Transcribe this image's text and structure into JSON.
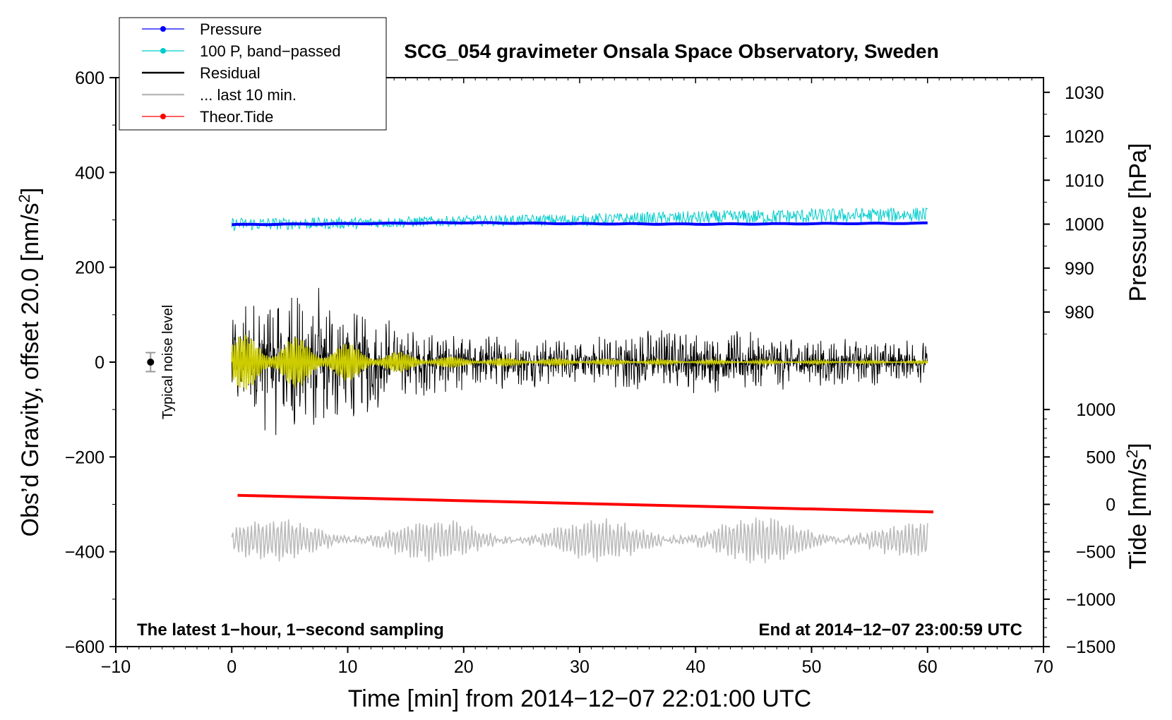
{
  "chart_data": {
    "type": "line",
    "title": "SCG_054 gravimeter Onsala Space Observatory, Sweden",
    "xlabel": "Time [min] from 2014−12−07 22:01:00 UTC",
    "ylabel_left": "Obs’d Gravity, offset 20.0 [nm/s",
    "ylabel_left_sup": "2",
    "ylabel_left_tail": "]",
    "ylabel_right_pressure": "Pressure [hPa]",
    "ylabel_right_tide": "Tide [nm/s",
    "ylabel_right_tide_sup": "2",
    "ylabel_right_tide_tail": "]",
    "xlim": [
      -10,
      70
    ],
    "ylim": [
      -600,
      600
    ],
    "x_ticks": [
      {
        "v": -10,
        "label": "−10"
      },
      {
        "v": 0,
        "label": "0"
      },
      {
        "v": 10,
        "label": "10"
      },
      {
        "v": 20,
        "label": "20"
      },
      {
        "v": 30,
        "label": "30"
      },
      {
        "v": 40,
        "label": "40"
      },
      {
        "v": 50,
        "label": "50"
      },
      {
        "v": 60,
        "label": "60"
      },
      {
        "v": 70,
        "label": "70"
      }
    ],
    "y_ticks": [
      {
        "v": 600,
        "label": "600"
      },
      {
        "v": 400,
        "label": "400"
      },
      {
        "v": 200,
        "label": "200"
      },
      {
        "v": 0,
        "label": "0"
      },
      {
        "v": -200,
        "label": "−200"
      },
      {
        "v": -400,
        "label": "−400"
      },
      {
        "v": -600,
        "label": "−600"
      }
    ],
    "pressure_axis": {
      "gravity_at_1000hPa": 291,
      "gravity_per_hPa": 9.27,
      "ticks": [
        {
          "v": 1030,
          "label": "1030"
        },
        {
          "v": 1020,
          "label": "1020"
        },
        {
          "v": 1010,
          "label": "1010"
        },
        {
          "v": 1000,
          "label": "1000"
        },
        {
          "v": 990,
          "label": "990"
        },
        {
          "v": 980,
          "label": "980"
        }
      ]
    },
    "tide_axis": {
      "gravity_at_0": -300,
      "gravity_per_unit": 0.2,
      "ticks": [
        {
          "v": 1000,
          "label": "1000"
        },
        {
          "v": 500,
          "label": "500"
        },
        {
          "v": 0,
          "label": "0"
        },
        {
          "v": -500,
          "label": "−500"
        },
        {
          "v": -1000,
          "label": "−1000"
        },
        {
          "v": -1500,
          "label": "−1500"
        }
      ]
    },
    "series": [
      {
        "name": "Pressure",
        "color": "#0000ff",
        "x": [
          0,
          10,
          20,
          30,
          40,
          50,
          60
        ],
        "values": [
          290,
          292,
          294,
          292,
          291,
          292,
          293
        ]
      },
      {
        "name": "100 P, band−passed",
        "color": "#00cccc",
        "x": [
          0,
          10,
          20,
          30,
          40,
          50,
          60
        ],
        "values": [
          291,
          293,
          298,
          300,
          304,
          308,
          312
        ],
        "amplitude": [
          14,
          12,
          11,
          13,
          15,
          16,
          15
        ]
      },
      {
        "name": "Residual",
        "color": "#000000",
        "x": [
          0,
          5,
          10,
          15,
          20,
          30,
          36,
          40,
          45,
          50,
          60
        ],
        "values": [
          0,
          0,
          0,
          0,
          0,
          0,
          0,
          0,
          0,
          0,
          0
        ],
        "amplitude": [
          120,
          180,
          140,
          80,
          60,
          50,
          75,
          70,
          65,
          55,
          45
        ]
      },
      {
        "name": "... last 10 min.",
        "color": "#bbbbbb",
        "x": [
          0,
          10,
          20,
          30,
          40,
          50,
          60
        ],
        "values": [
          -375,
          -375,
          -375,
          -375,
          -375,
          -375,
          -375
        ],
        "amplitude": [
          40,
          45,
          40,
          42,
          45,
          48,
          35
        ]
      },
      {
        "name": "Theor.Tide",
        "color": "#ff0000",
        "x": [
          0.5,
          60.5
        ],
        "values": [
          -281,
          -316
        ]
      }
    ],
    "smoothed_residual": {
      "name": "smoothed residual",
      "color": "#cccc00",
      "amplitude": [
        60,
        55,
        40,
        20,
        10,
        5,
        3
      ]
    },
    "legend": [
      {
        "label": "Pressure",
        "color": "#0000ff",
        "marker": true
      },
      {
        "label": "100 P, band−passed",
        "color": "#00cccc",
        "marker": true
      },
      {
        "label": "Residual",
        "color": "#000000",
        "marker": false
      },
      {
        "label": "... last 10 min.",
        "color": "#bbbbbb",
        "marker": false
      },
      {
        "label": "Theor.Tide",
        "color": "#ff0000",
        "marker": true
      }
    ],
    "legend_position": "top-left",
    "noise_level": {
      "label": "Typical noise level",
      "x": -7,
      "value": 0,
      "error": 20
    },
    "footer_left": "The latest 1−hour, 1−second sampling",
    "footer_right": "End at 2014−12−07 23:00:59 UTC"
  }
}
